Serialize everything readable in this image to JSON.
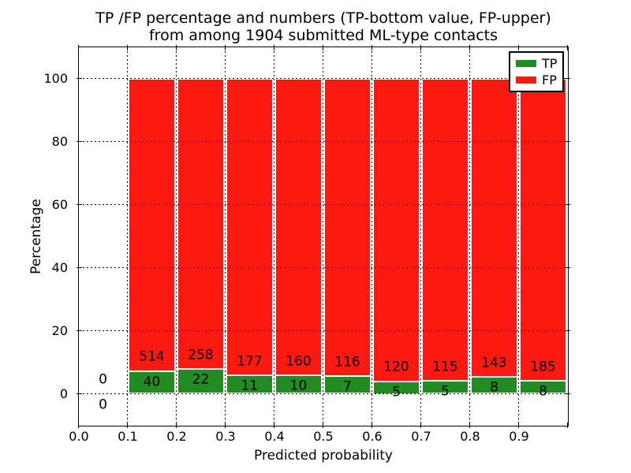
{
  "chart_data": {
    "type": "bar",
    "stacked": true,
    "title_lines": [
      "TP /FP percentage and numbers (TP-bottom value, FP-upper)",
      "from among 1904 submitted ML-type contacts"
    ],
    "xlabel": "Predicted probability",
    "ylabel": "Percentage",
    "total_submitted": 1904,
    "values_are": "counts per predicted-probability bin; bar heights are TP/FP percentages of each bin stacked to 100%",
    "bins": [
      {
        "x_start": 0.0,
        "x_end": 0.1,
        "tp_count": 0,
        "fp_count": 0,
        "tp_pct": 0,
        "fp_pct": 0
      },
      {
        "x_start": 0.1,
        "x_end": 0.2,
        "tp_count": 40,
        "fp_count": 514,
        "tp_pct": 7.22,
        "fp_pct": 92.78
      },
      {
        "x_start": 0.2,
        "x_end": 0.3,
        "tp_count": 22,
        "fp_count": 258,
        "tp_pct": 7.86,
        "fp_pct": 92.14
      },
      {
        "x_start": 0.3,
        "x_end": 0.4,
        "tp_count": 11,
        "fp_count": 177,
        "tp_pct": 5.85,
        "fp_pct": 94.15
      },
      {
        "x_start": 0.4,
        "x_end": 0.5,
        "tp_count": 10,
        "fp_count": 160,
        "tp_pct": 5.88,
        "fp_pct": 94.12
      },
      {
        "x_start": 0.5,
        "x_end": 0.6,
        "tp_count": 7,
        "fp_count": 116,
        "tp_pct": 5.69,
        "fp_pct": 94.31
      },
      {
        "x_start": 0.6,
        "x_end": 0.7,
        "tp_count": 5,
        "fp_count": 120,
        "tp_pct": 4.0,
        "fp_pct": 96.0
      },
      {
        "x_start": 0.7,
        "x_end": 0.8,
        "tp_count": 5,
        "fp_count": 115,
        "tp_pct": 4.17,
        "fp_pct": 95.83
      },
      {
        "x_start": 0.8,
        "x_end": 0.9,
        "tp_count": 8,
        "fp_count": 143,
        "tp_pct": 5.3,
        "fp_pct": 94.7
      },
      {
        "x_start": 0.9,
        "x_end": 1.0,
        "tp_count": 8,
        "fp_count": 185,
        "tp_pct": 4.15,
        "fp_pct": 95.85
      }
    ],
    "x_ticks": [
      "0.0",
      "0.1",
      "0.2",
      "0.3",
      "0.4",
      "0.5",
      "0.6",
      "0.7",
      "0.8",
      "0.9"
    ],
    "y_ticks": [
      "0",
      "20",
      "40",
      "60",
      "80",
      "100"
    ],
    "xlim": [
      0.0,
      1.0
    ],
    "ylim": [
      -10,
      110
    ],
    "grid": "black dotted gridlines at every tick, drawn on top of bars",
    "legend": {
      "position": "upper right",
      "entries": [
        {
          "label": "TP",
          "color": "#228b22"
        },
        {
          "label": "FP",
          "color": "#fb1912"
        }
      ]
    }
  },
  "colors": {
    "tp_green": "#228b22",
    "fp_red": "#fb1912",
    "background": "#ffffff",
    "text": "#000000"
  }
}
